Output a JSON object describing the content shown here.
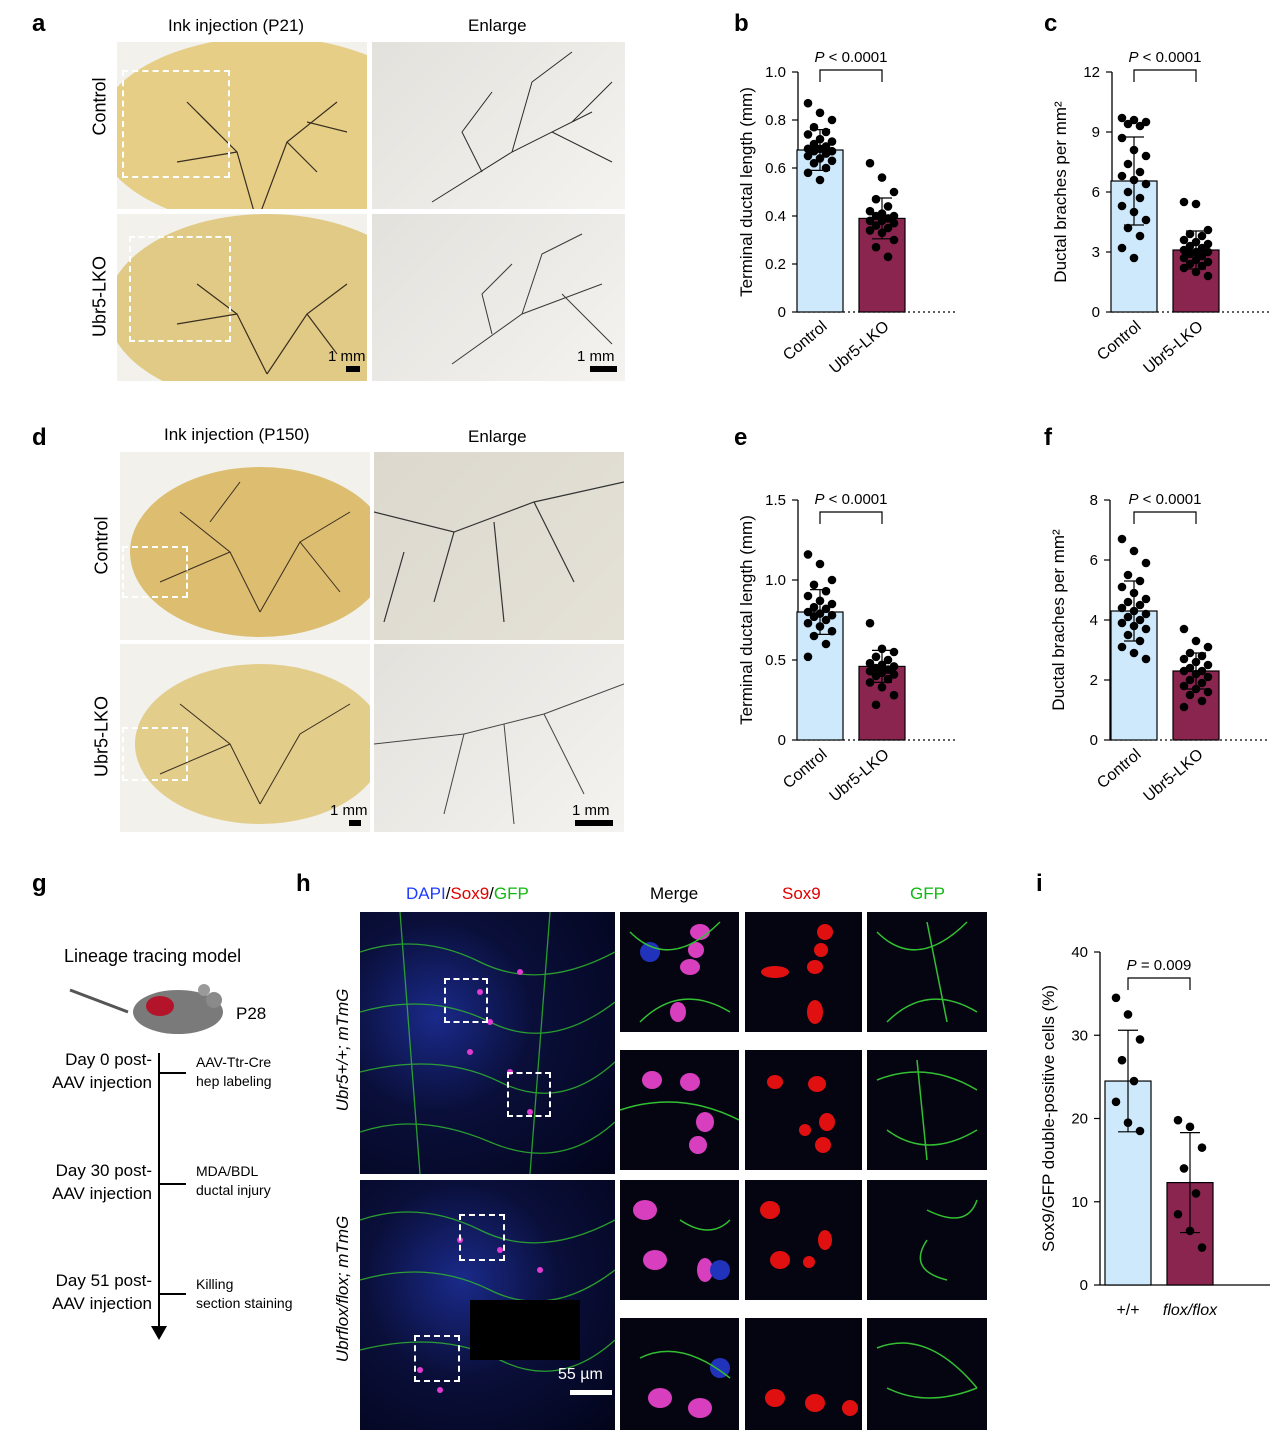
{
  "panels": {
    "a": {
      "letter": "a",
      "title": "Ink injection (P21)",
      "enlarge": "Enlarge",
      "row1": "Control",
      "row2": "Ubr5-LKO",
      "scale1": "1 mm",
      "scale2": "1 mm"
    },
    "d": {
      "letter": "d",
      "title": "Ink injection (P150)",
      "enlarge": "Enlarge",
      "row1": "Control",
      "row2": "Ubr5-LKO",
      "scale1": "1 mm",
      "scale2": "1 mm"
    },
    "g": {
      "letter": "g",
      "title": "Lineage tracing model",
      "age": "P28",
      "steps": [
        {
          "day": "Day 0 post-",
          "day2": "AAV injection",
          "event": "AAV-Ttr-Cre",
          "event2": "hep labeling"
        },
        {
          "day": "Day 30 post-",
          "day2": "AAV injection",
          "event": "MDA/BDL",
          "event2": "ductal injury"
        },
        {
          "day": "Day 51 post-",
          "day2": "AAV injection",
          "event": "Killing",
          "event2": "section staining"
        }
      ]
    },
    "h": {
      "letter": "h",
      "dapi": "DAPI",
      "slash1": "/",
      "sox9": "Sox9",
      "slash2": "/",
      "gfp": "GFP",
      "merge": "Merge",
      "col_sox9": "Sox9",
      "col_gfp": "GFP",
      "row1_label": "Ubr5+/+; mTmG",
      "row2_label": "Ubrflox/flox; mTmG",
      "scale": "55 µm"
    }
  },
  "chart_data": [
    {
      "id": "b",
      "type": "bar",
      "categories": [
        "Control",
        "Ubr5-LKO"
      ],
      "values": [
        0.675,
        0.39
      ],
      "errors": [
        0.085,
        0.085
      ],
      "points": [
        [
          0.87,
          0.83,
          0.8,
          0.77,
          0.75,
          0.74,
          0.72,
          0.71,
          0.7,
          0.69,
          0.68,
          0.68,
          0.67,
          0.67,
          0.66,
          0.65,
          0.64,
          0.63,
          0.62,
          0.6,
          0.58,
          0.55
        ],
        [
          0.62,
          0.56,
          0.5,
          0.47,
          0.44,
          0.42,
          0.41,
          0.4,
          0.4,
          0.39,
          0.38,
          0.38,
          0.37,
          0.36,
          0.35,
          0.34,
          0.33,
          0.3,
          0.27,
          0.23
        ]
      ],
      "ylabel": "Terminal ductal length (mm)",
      "ylim": [
        0,
        1.0
      ],
      "yticks": [
        "0",
        "0.2",
        "0.4",
        "0.6",
        "0.8",
        "1.0"
      ],
      "pvalue_label": "P",
      "pvalue_text": " < 0.0001",
      "colors": [
        "#cde9fb",
        "#8a2550"
      ]
    },
    {
      "id": "c",
      "type": "bar",
      "categories": [
        "Control",
        "Ubr5-LKO"
      ],
      "values": [
        6.55,
        3.1
      ],
      "errors": [
        2.2,
        0.95
      ],
      "points": [
        [
          9.7,
          9.6,
          9.5,
          9.4,
          9.3,
          8.7,
          8.1,
          7.8,
          7.4,
          7.0,
          6.8,
          6.6,
          6.4,
          6.0,
          5.7,
          5.3,
          5.0,
          4.6,
          4.2,
          3.8,
          3.2,
          2.7
        ],
        [
          5.5,
          5.4,
          4.1,
          3.9,
          3.8,
          3.6,
          3.5,
          3.4,
          3.3,
          3.2,
          3.1,
          3.0,
          3.0,
          2.9,
          2.8,
          2.7,
          2.6,
          2.5,
          2.4,
          2.3,
          2.2,
          2.0,
          1.8
        ]
      ],
      "ylabel": "Ductal braches per mm²",
      "ylim": [
        0,
        12
      ],
      "yticks": [
        "0",
        "3",
        "6",
        "9",
        "12"
      ],
      "pvalue_label": "P",
      "pvalue_text": " < 0.0001",
      "colors": [
        "#cde9fb",
        "#8a2550"
      ]
    },
    {
      "id": "e",
      "type": "bar",
      "categories": [
        "Control",
        "Ubr5-LKO"
      ],
      "values": [
        0.8,
        0.46
      ],
      "errors": [
        0.14,
        0.1
      ],
      "points": [
        [
          1.16,
          1.1,
          1.0,
          0.97,
          0.93,
          0.9,
          0.87,
          0.85,
          0.83,
          0.82,
          0.8,
          0.79,
          0.78,
          0.77,
          0.75,
          0.73,
          0.71,
          0.68,
          0.65,
          0.6,
          0.52
        ],
        [
          0.73,
          0.57,
          0.55,
          0.52,
          0.5,
          0.48,
          0.47,
          0.46,
          0.45,
          0.44,
          0.43,
          0.42,
          0.41,
          0.4,
          0.38,
          0.36,
          0.33,
          0.28,
          0.22
        ]
      ],
      "ylabel": "Terminal ductal length (mm)",
      "ylim": [
        0,
        1.5
      ],
      "yticks": [
        "0",
        "0.5",
        "1.0",
        "1.5"
      ],
      "pvalue_label": "P",
      "pvalue_text": " < 0.0001",
      "colors": [
        "#cde9fb",
        "#8a2550"
      ]
    },
    {
      "id": "f",
      "type": "bar",
      "categories": [
        "Control",
        "Ubr5-LKO"
      ],
      "values": [
        4.3,
        2.3
      ],
      "errors": [
        1.0,
        0.6
      ],
      "points": [
        [
          6.7,
          6.3,
          5.9,
          5.5,
          5.3,
          5.1,
          4.9,
          4.7,
          4.6,
          4.5,
          4.4,
          4.3,
          4.2,
          4.1,
          4.0,
          3.9,
          3.8,
          3.7,
          3.5,
          3.3,
          3.1,
          2.9,
          2.7
        ],
        [
          3.7,
          3.3,
          3.1,
          2.9,
          2.8,
          2.7,
          2.6,
          2.5,
          2.4,
          2.3,
          2.3,
          2.2,
          2.1,
          2.0,
          1.9,
          1.8,
          1.7,
          1.6,
          1.5,
          1.3,
          1.1
        ]
      ],
      "ylabel": "Ductal braches per mm²",
      "ylim": [
        0,
        8
      ],
      "yticks": [
        "0",
        "2",
        "4",
        "6",
        "8"
      ],
      "pvalue_label": "P",
      "pvalue_text": " < 0.0001",
      "colors": [
        "#cde9fb",
        "#8a2550"
      ]
    },
    {
      "id": "i",
      "type": "bar",
      "categories": [
        "+/+",
        "flox/flox"
      ],
      "values": [
        24.5,
        12.3
      ],
      "errors": [
        6.1,
        6.0
      ],
      "points": [
        [
          34.5,
          32.5,
          29.5,
          27.0,
          24.5,
          22.0,
          19.5,
          18.5
        ],
        [
          19.8,
          19.0,
          16.5,
          14.0,
          11.0,
          8.5,
          6.5,
          4.5
        ]
      ],
      "ylabel": "Sox9/GFP double-positive cells (%)",
      "ylim": [
        0,
        40
      ],
      "yticks": [
        "0",
        "10",
        "20",
        "30",
        "40"
      ],
      "pvalue_label": "P",
      "pvalue_text": " = 0.009",
      "colors": [
        "#cde9fb",
        "#8a2550"
      ]
    }
  ]
}
